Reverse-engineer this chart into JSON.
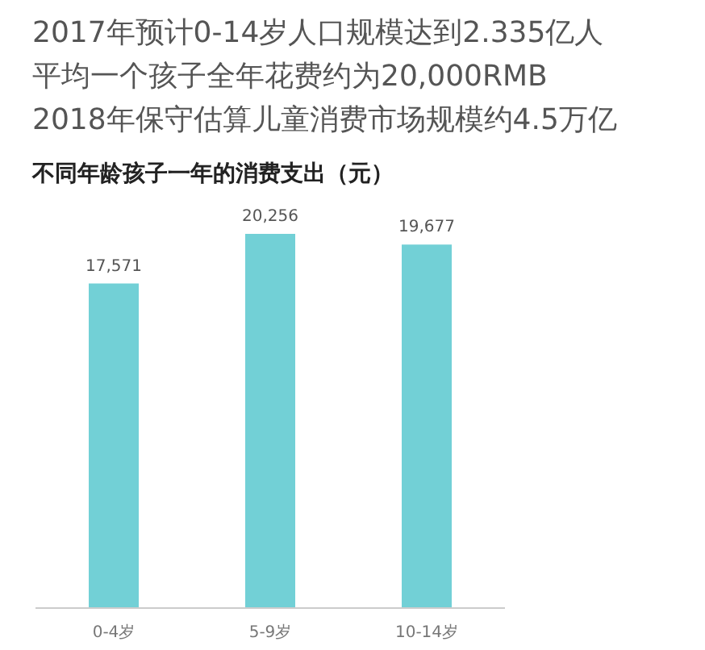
{
  "chart_data": {
    "type": "bar",
    "title": "不同年龄孩子一年的消费支出（元）",
    "annotations": [
      "2017年预计0-14岁人口规模达到2.335亿人",
      "平均一个孩子全年花费约为20,000RMB",
      "2018年保守估算儿童消费市场规模约4.5万亿"
    ],
    "categories": [
      "0-4岁",
      "5-9岁",
      "10-14岁"
    ],
    "values": [
      17571,
      20256,
      19677
    ],
    "value_labels": [
      "17,571",
      "20,256",
      "19,677"
    ],
    "color": "#72d0d6"
  }
}
